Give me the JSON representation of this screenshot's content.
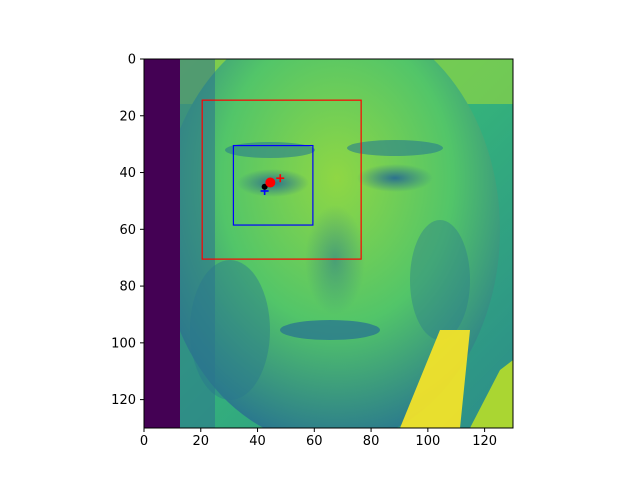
{
  "image": {
    "description_tag": "face",
    "colormap": "viridis",
    "value_range": [
      0,
      1
    ]
  },
  "axes": {
    "xlim": [
      0,
      130
    ],
    "ylim": [
      130,
      0
    ],
    "x_ticks": [
      "0",
      "20",
      "40",
      "60",
      "80",
      "100",
      "120"
    ],
    "y_ticks": [
      "0",
      "20",
      "40",
      "60",
      "80",
      "100",
      "120"
    ],
    "x_tick_values": [
      0,
      20,
      40,
      60,
      80,
      100,
      120
    ],
    "y_tick_values": [
      0,
      20,
      40,
      60,
      80,
      100,
      120
    ]
  },
  "overlays": {
    "outer_box": {
      "x0": 20.5,
      "y0": 14.5,
      "x1": 76.5,
      "y1": 70.5,
      "color": "#ff0000"
    },
    "inner_box": {
      "x0": 31.5,
      "y0": 30.5,
      "x1": 59.5,
      "y1": 58.5,
      "color": "#0000ff"
    },
    "markers": [
      {
        "name": "blue-plus-marker",
        "x": 42.5,
        "y": 46.5,
        "shape": "plus",
        "color": "#0000ff"
      },
      {
        "name": "black-dot-marker",
        "x": 42.5,
        "y": 45,
        "shape": "dot",
        "color": "#000000"
      },
      {
        "name": "red-circle-marker",
        "x": 44.5,
        "y": 43.5,
        "shape": "circle",
        "color": "#ff0000"
      },
      {
        "name": "red-plus-marker",
        "x": 48,
        "y": 42,
        "shape": "plus",
        "color": "#ff0000"
      }
    ]
  }
}
